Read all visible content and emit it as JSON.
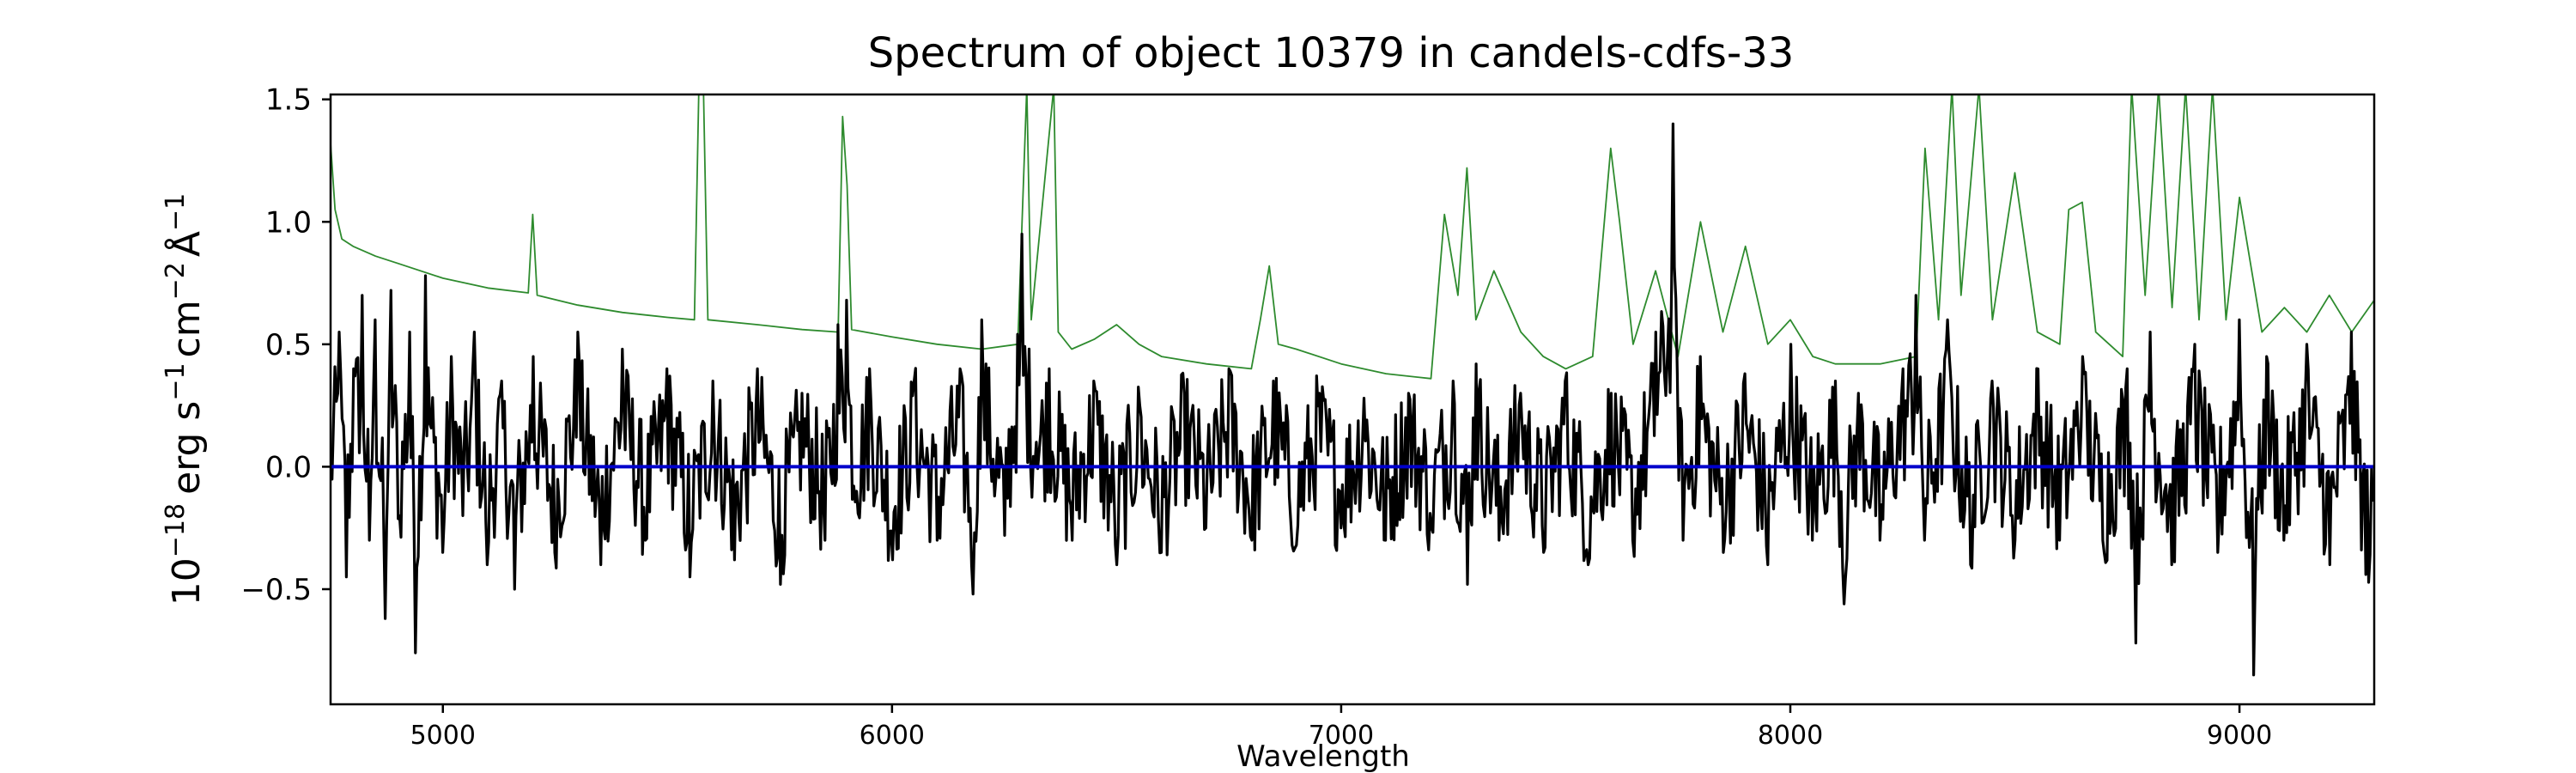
{
  "chart_data": {
    "type": "line",
    "title": "Spectrum of object 10379 in candels-cdfs-33",
    "xlabel": "Wavelength",
    "ylabel_parts": {
      "base": "10",
      "exp1": "−18",
      "erg": "erg s",
      "exp2": "−1",
      "cm": "cm",
      "exp3": "−2",
      "ang": "Å",
      "exp4": "−1"
    },
    "xlim": [
      4750,
      9300
    ],
    "ylim": [
      -0.97,
      1.52
    ],
    "xticks": [
      5000,
      6000,
      7000,
      8000,
      9000
    ],
    "xtick_labels": [
      "5000",
      "6000",
      "7000",
      "8000",
      "9000"
    ],
    "yticks": [
      -0.5,
      0.0,
      0.5,
      1.0,
      1.5
    ],
    "ytick_labels": [
      "−0.5",
      "0.0",
      "0.5",
      "1.0",
      "1.5"
    ],
    "grid": false,
    "legend": "none",
    "series": [
      {
        "role": "flux",
        "color": "#000000",
        "noise_amplitude": 0.28,
        "points": [
          [
            4750,
            0.05
          ],
          [
            4770,
            0.55
          ],
          [
            4785,
            -0.45
          ],
          [
            4800,
            0.4
          ],
          [
            4820,
            0.7
          ],
          [
            4835,
            -0.3
          ],
          [
            4850,
            0.6
          ],
          [
            4870,
            -0.62
          ],
          [
            4885,
            0.72
          ],
          [
            4905,
            -0.2
          ],
          [
            4925,
            0.55
          ],
          [
            4940,
            -0.76
          ],
          [
            4960,
            0.78
          ],
          [
            4980,
            0.1
          ],
          [
            5000,
            -0.35
          ],
          [
            5020,
            0.45
          ],
          [
            5045,
            -0.2
          ],
          [
            5070,
            0.55
          ],
          [
            5100,
            -0.4
          ],
          [
            5130,
            0.35
          ],
          [
            5160,
            -0.5
          ],
          [
            5200,
            0.45
          ],
          [
            5250,
            -0.35
          ],
          [
            5300,
            0.55
          ],
          [
            5350,
            -0.4
          ],
          [
            5400,
            0.48
          ],
          [
            5450,
            -0.3
          ],
          [
            5500,
            0.4
          ],
          [
            5550,
            -0.45
          ],
          [
            5600,
            0.35
          ],
          [
            5650,
            -0.38
          ],
          [
            5700,
            0.4
          ],
          [
            5750,
            -0.48
          ],
          [
            5800,
            0.3
          ],
          [
            5850,
            -0.3
          ],
          [
            5880,
            0.58
          ],
          [
            5900,
            0.68
          ],
          [
            5920,
            -0.1
          ],
          [
            5950,
            0.4
          ],
          [
            6000,
            -0.38
          ],
          [
            6050,
            0.35
          ],
          [
            6100,
            -0.3
          ],
          [
            6150,
            0.4
          ],
          [
            6180,
            -0.52
          ],
          [
            6200,
            0.6
          ],
          [
            6250,
            -0.28
          ],
          [
            6290,
            0.95
          ],
          [
            6320,
            0.1
          ],
          [
            6350,
            0.4
          ],
          [
            6400,
            -0.3
          ],
          [
            6450,
            0.35
          ],
          [
            6500,
            -0.4
          ],
          [
            6550,
            0.25
          ],
          [
            6600,
            -0.35
          ],
          [
            6650,
            0.3
          ],
          [
            6700,
            -0.25
          ],
          [
            6750,
            0.4
          ],
          [
            6800,
            -0.3
          ],
          [
            6850,
            0.35
          ],
          [
            6900,
            -0.32
          ],
          [
            6950,
            0.3
          ],
          [
            7000,
            -0.25
          ],
          [
            7050,
            0.28
          ],
          [
            7100,
            -0.3
          ],
          [
            7150,
            0.3
          ],
          [
            7200,
            -0.25
          ],
          [
            7250,
            0.35
          ],
          [
            7280,
            -0.48
          ],
          [
            7300,
            0.42
          ],
          [
            7350,
            -0.3
          ],
          [
            7400,
            0.3
          ],
          [
            7450,
            -0.35
          ],
          [
            7500,
            0.35
          ],
          [
            7550,
            -0.4
          ],
          [
            7600,
            0.3
          ],
          [
            7650,
            -0.3
          ],
          [
            7700,
            0.55
          ],
          [
            7740,
            1.4
          ],
          [
            7760,
            -0.3
          ],
          [
            7800,
            0.45
          ],
          [
            7850,
            -0.35
          ],
          [
            7900,
            0.38
          ],
          [
            7950,
            -0.4
          ],
          [
            8000,
            0.5
          ],
          [
            8050,
            -0.3
          ],
          [
            8100,
            0.35
          ],
          [
            8120,
            -0.56
          ],
          [
            8150,
            0.3
          ],
          [
            8200,
            -0.3
          ],
          [
            8250,
            0.4
          ],
          [
            8280,
            0.7
          ],
          [
            8300,
            -0.3
          ],
          [
            8350,
            0.6
          ],
          [
            8400,
            -0.4
          ],
          [
            8450,
            0.35
          ],
          [
            8500,
            -0.3
          ],
          [
            8550,
            0.4
          ],
          [
            8600,
            -0.3
          ],
          [
            8650,
            0.45
          ],
          [
            8700,
            -0.35
          ],
          [
            8750,
            0.4
          ],
          [
            8770,
            -0.72
          ],
          [
            8800,
            0.55
          ],
          [
            8850,
            -0.4
          ],
          [
            8900,
            0.5
          ],
          [
            8950,
            -0.35
          ],
          [
            9000,
            0.6
          ],
          [
            9030,
            -0.85
          ],
          [
            9060,
            0.45
          ],
          [
            9100,
            -0.3
          ],
          [
            9150,
            0.5
          ],
          [
            9200,
            -0.4
          ],
          [
            9250,
            0.55
          ],
          [
            9280,
            -0.44
          ],
          [
            9300,
            -0.63
          ]
        ]
      },
      {
        "role": "error",
        "color": "#2e8b2e",
        "points": [
          [
            4750,
            1.32
          ],
          [
            4760,
            1.05
          ],
          [
            4775,
            0.93
          ],
          [
            4800,
            0.9
          ],
          [
            4850,
            0.86
          ],
          [
            4900,
            0.83
          ],
          [
            5000,
            0.77
          ],
          [
            5100,
            0.73
          ],
          [
            5190,
            0.71
          ],
          [
            5200,
            1.03
          ],
          [
            5210,
            0.7
          ],
          [
            5300,
            0.66
          ],
          [
            5400,
            0.63
          ],
          [
            5500,
            0.61
          ],
          [
            5560,
            0.6
          ],
          [
            5570,
            1.55
          ],
          [
            5580,
            1.55
          ],
          [
            5590,
            0.6
          ],
          [
            5700,
            0.58
          ],
          [
            5800,
            0.56
          ],
          [
            5880,
            0.55
          ],
          [
            5890,
            1.43
          ],
          [
            5900,
            1.15
          ],
          [
            5910,
            0.56
          ],
          [
            6000,
            0.53
          ],
          [
            6100,
            0.5
          ],
          [
            6200,
            0.48
          ],
          [
            6280,
            0.5
          ],
          [
            6300,
            1.55
          ],
          [
            6310,
            0.6
          ],
          [
            6360,
            1.55
          ],
          [
            6370,
            0.55
          ],
          [
            6400,
            0.48
          ],
          [
            6450,
            0.52
          ],
          [
            6500,
            0.58
          ],
          [
            6550,
            0.5
          ],
          [
            6600,
            0.45
          ],
          [
            6700,
            0.42
          ],
          [
            6800,
            0.4
          ],
          [
            6820,
            0.6
          ],
          [
            6840,
            0.82
          ],
          [
            6860,
            0.5
          ],
          [
            6900,
            0.48
          ],
          [
            7000,
            0.42
          ],
          [
            7100,
            0.38
          ],
          [
            7200,
            0.36
          ],
          [
            7230,
            1.03
          ],
          [
            7260,
            0.7
          ],
          [
            7280,
            1.22
          ],
          [
            7300,
            0.6
          ],
          [
            7340,
            0.8
          ],
          [
            7400,
            0.55
          ],
          [
            7450,
            0.45
          ],
          [
            7500,
            0.4
          ],
          [
            7560,
            0.45
          ],
          [
            7600,
            1.3
          ],
          [
            7620,
            1.0
          ],
          [
            7650,
            0.5
          ],
          [
            7700,
            0.8
          ],
          [
            7750,
            0.45
          ],
          [
            7800,
            1.0
          ],
          [
            7850,
            0.55
          ],
          [
            7900,
            0.9
          ],
          [
            7950,
            0.5
          ],
          [
            8000,
            0.6
          ],
          [
            8050,
            0.45
          ],
          [
            8100,
            0.42
          ],
          [
            8200,
            0.42
          ],
          [
            8280,
            0.45
          ],
          [
            8300,
            1.3
          ],
          [
            8330,
            0.6
          ],
          [
            8360,
            1.55
          ],
          [
            8380,
            0.7
          ],
          [
            8420,
            1.55
          ],
          [
            8450,
            0.6
          ],
          [
            8500,
            1.2
          ],
          [
            8550,
            0.55
          ],
          [
            8600,
            0.5
          ],
          [
            8620,
            1.05
          ],
          [
            8650,
            1.08
          ],
          [
            8680,
            0.55
          ],
          [
            8740,
            0.45
          ],
          [
            8760,
            1.55
          ],
          [
            8790,
            0.7
          ],
          [
            8820,
            1.55
          ],
          [
            8850,
            0.65
          ],
          [
            8880,
            1.55
          ],
          [
            8910,
            0.6
          ],
          [
            8940,
            1.55
          ],
          [
            8970,
            0.6
          ],
          [
            9000,
            1.1
          ],
          [
            9050,
            0.55
          ],
          [
            9100,
            0.65
          ],
          [
            9150,
            0.55
          ],
          [
            9200,
            0.7
          ],
          [
            9250,
            0.55
          ],
          [
            9300,
            0.68
          ]
        ]
      },
      {
        "role": "zero-line",
        "color": "#0000cc",
        "points": [
          [
            4750,
            0.0
          ],
          [
            9300,
            0.0
          ]
        ]
      }
    ]
  }
}
